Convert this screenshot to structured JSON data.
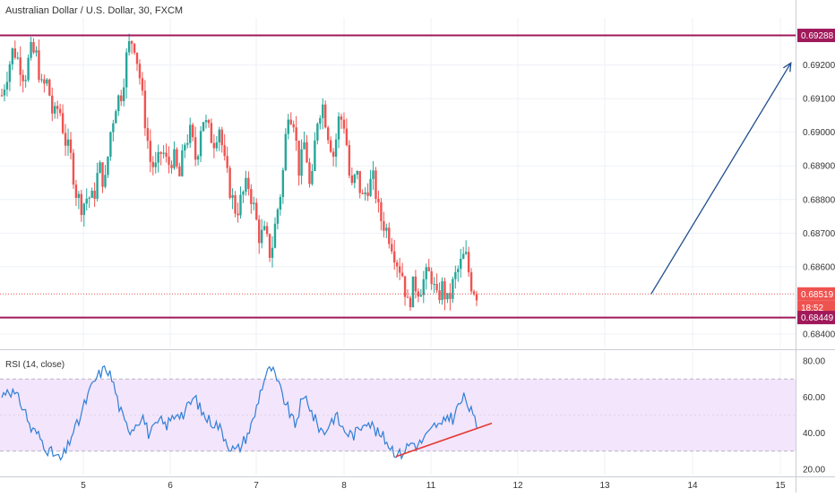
{
  "header": {
    "title": "Australian Dollar / U.S. Dollar, 30, FXCM"
  },
  "rsi_panel": {
    "label": "RSI (14, close)"
  },
  "price_axis": {
    "ticks": [
      "0.69200",
      "0.69100",
      "0.69000",
      "0.68900",
      "0.68800",
      "0.68700",
      "0.68600",
      "0.68400"
    ]
  },
  "rsi_axis": {
    "ticks": [
      "80.00",
      "60.00",
      "40.00",
      "20.00"
    ]
  },
  "time_axis": {
    "ticks": [
      "5",
      "6",
      "7",
      "8",
      "11",
      "12",
      "13",
      "14",
      "15"
    ]
  },
  "badges": {
    "top_level": "0.69288",
    "current_price": "0.68519",
    "countdown": "18:52",
    "bottom_level": "0.68449"
  },
  "colors": {
    "up": "#26a69a",
    "down": "#ef5350",
    "level_line": "#a0195a",
    "arrow": "#1f4e8c",
    "rsi_line": "#2f7fd6",
    "rsi_band": "#f3e5fb",
    "trend_line": "#e53935"
  },
  "chart_data": [
    {
      "type": "candlestick",
      "title": "Australian Dollar / U.S. Dollar, 30, FXCM",
      "y_range": [
        0.6836,
        0.6934
      ],
      "x_ticks": [
        "5",
        "6",
        "7",
        "8",
        "11",
        "12",
        "13",
        "14",
        "15"
      ],
      "y_ticks": [
        0.692,
        0.691,
        0.69,
        0.689,
        0.688,
        0.687,
        0.686,
        0.684
      ],
      "price_path": [
        0.6911,
        0.6918,
        0.6925,
        0.6921,
        0.6916,
        0.6924,
        0.6923,
        0.6913,
        0.6915,
        0.6904,
        0.6908,
        0.6898,
        0.6893,
        0.6882,
        0.6878,
        0.6881,
        0.688,
        0.689,
        0.6884,
        0.69,
        0.6909,
        0.6912,
        0.6925,
        0.6928,
        0.6918,
        0.6904,
        0.6891,
        0.6889,
        0.6895,
        0.689,
        0.6893,
        0.6886,
        0.6897,
        0.69,
        0.6891,
        0.6905,
        0.6901,
        0.6897,
        0.6902,
        0.689,
        0.6882,
        0.6876,
        0.6881,
        0.6885,
        0.6878,
        0.6869,
        0.687,
        0.6863,
        0.6875,
        0.6885,
        0.6907,
        0.6904,
        0.6888,
        0.6898,
        0.688,
        0.6903,
        0.6909,
        0.69,
        0.6893,
        0.6905,
        0.6902,
        0.6882,
        0.6888,
        0.688,
        0.6884,
        0.6886,
        0.6875,
        0.6872,
        0.6868,
        0.6862,
        0.6858,
        0.6848,
        0.6855,
        0.6853,
        0.6857,
        0.6858,
        0.685,
        0.6854,
        0.6849,
        0.6856,
        0.686,
        0.6864,
        0.6855,
        0.6852
      ],
      "levels": [
        {
          "label": "0.69288",
          "value": 0.69288
        },
        {
          "label": "0.68449",
          "value": 0.68449
        }
      ],
      "current_price": {
        "label": "0.68519",
        "value": 0.68519
      },
      "projection_arrow": {
        "from": {
          "x": 11.5,
          "y": 0.68519
        },
        "to": {
          "x": 13.1,
          "y": 0.69206
        }
      }
    },
    {
      "type": "line",
      "name": "RSI (14, close)",
      "y_range": [
        17,
        85
      ],
      "y_ticks": [
        80,
        60,
        40,
        20
      ],
      "band": [
        30,
        70
      ],
      "values": [
        60,
        65,
        62,
        58,
        52,
        42,
        40,
        35,
        30,
        28,
        25,
        30,
        40,
        45,
        55,
        63,
        70,
        74,
        76,
        68,
        55,
        45,
        42,
        46,
        50,
        40,
        42,
        47,
        44,
        48,
        52,
        50,
        56,
        60,
        52,
        48,
        46,
        44,
        38,
        32,
        30,
        34,
        40,
        48,
        62,
        72,
        76,
        68,
        60,
        52,
        44,
        56,
        60,
        50,
        44,
        40,
        46,
        50,
        43,
        40,
        39,
        42,
        48,
        45,
        40,
        38,
        34,
        30,
        28,
        32,
        35,
        33,
        37,
        40,
        45,
        43,
        50,
        48,
        56,
        60,
        52,
        44
      ],
      "trendline": {
        "from": 27,
        "to": 45
      }
    }
  ]
}
